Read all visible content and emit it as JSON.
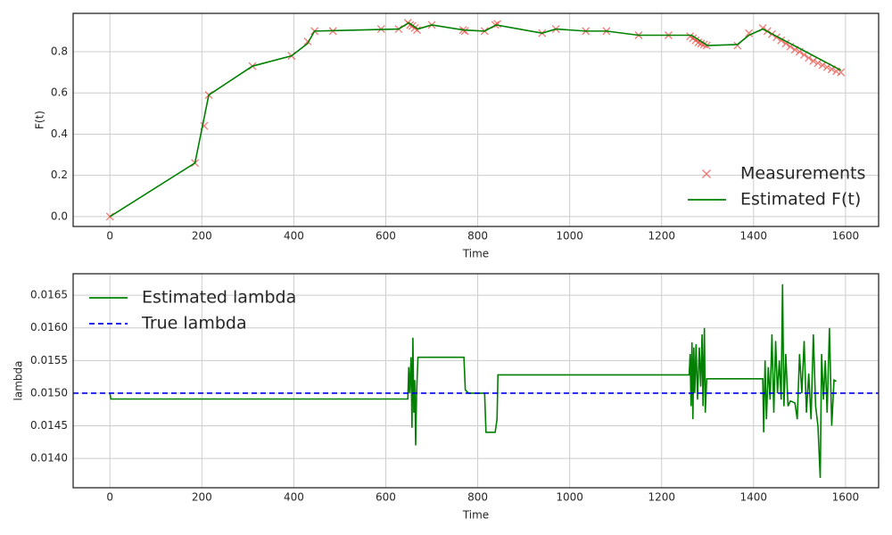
{
  "chart_data": [
    {
      "type": "line",
      "xlabel": "Time",
      "ylabel": "F(t)",
      "xlim": [
        -80,
        1672
      ],
      "xticks": [
        0,
        200,
        400,
        600,
        800,
        1000,
        1200,
        1400,
        1600
      ],
      "ylim": [
        -0.048,
        0.986
      ],
      "yticks": [
        {
          "value": 0,
          "label": "0.0"
        },
        0.2,
        0.4,
        0.6,
        0.8
      ],
      "grid": true,
      "legend": "lower right",
      "series": [
        {
          "name": "Measurements",
          "color": "#e8413a",
          "marker": "x",
          "x": [
            0,
            185,
            205,
            215,
            310,
            395,
            430,
            445,
            485,
            590,
            628,
            648,
            653,
            658,
            663,
            668,
            700,
            768,
            772,
            815,
            838,
            843,
            940,
            970,
            1035,
            1080,
            1150,
            1215,
            1262,
            1268,
            1274,
            1280,
            1286,
            1292,
            1298,
            1365,
            1390,
            1420,
            1430,
            1440,
            1450,
            1460,
            1470,
            1480,
            1490,
            1500,
            1510,
            1520,
            1530,
            1540,
            1550,
            1560,
            1570,
            1580,
            1590
          ],
          "values": [
            0,
            0.26,
            0.44,
            0.59,
            0.73,
            0.78,
            0.85,
            0.9,
            0.9,
            0.91,
            0.91,
            0.94,
            0.93,
            0.925,
            0.915,
            0.905,
            0.93,
            0.905,
            0.9,
            0.9,
            0.93,
            0.935,
            0.89,
            0.91,
            0.9,
            0.9,
            0.88,
            0.88,
            0.875,
            0.865,
            0.855,
            0.845,
            0.84,
            0.835,
            0.83,
            0.83,
            0.89,
            0.915,
            0.9,
            0.885,
            0.87,
            0.855,
            0.84,
            0.825,
            0.81,
            0.8,
            0.785,
            0.77,
            0.755,
            0.745,
            0.735,
            0.725,
            0.715,
            0.705,
            0.7
          ]
        },
        {
          "name": "Estimated F(t)",
          "color": "#008000",
          "x": [
            0,
            185,
            215,
            310,
            395,
            430,
            445,
            628,
            650,
            670,
            700,
            770,
            815,
            840,
            940,
            970,
            1035,
            1080,
            1150,
            1215,
            1265,
            1300,
            1365,
            1390,
            1420,
            1590
          ],
          "values": [
            0,
            0.26,
            0.59,
            0.73,
            0.78,
            0.84,
            0.9,
            0.91,
            0.94,
            0.91,
            0.93,
            0.905,
            0.9,
            0.93,
            0.89,
            0.91,
            0.9,
            0.9,
            0.88,
            0.88,
            0.88,
            0.83,
            0.835,
            0.88,
            0.91,
            0.71
          ]
        }
      ]
    },
    {
      "type": "line",
      "xlabel": "Time",
      "ylabel": "lambda",
      "xlim": [
        -80,
        1672
      ],
      "xticks": [
        0,
        200,
        400,
        600,
        800,
        1000,
        1200,
        1400,
        1600
      ],
      "ylim": [
        0.01355,
        0.01683
      ],
      "yticks": [
        {
          "value": 0.014,
          "label": "0.0140"
        },
        0.0145,
        {
          "value": 0.015,
          "label": "0.0150"
        },
        0.0155,
        {
          "value": 0.016,
          "label": "0.0160"
        },
        0.0165
      ],
      "grid": true,
      "legend": "upper left",
      "series": [
        {
          "name": "Estimated lambda",
          "color": "#008000",
          "x": [
            0,
            2,
            648,
            650,
            652,
            655,
            657,
            659,
            661,
            663,
            665,
            667,
            670,
            770,
            773,
            780,
            815,
            818,
            838,
            842,
            844,
            1260,
            1262,
            1264,
            1266,
            1268,
            1270,
            1272,
            1275,
            1278,
            1282,
            1285,
            1288,
            1290,
            1293,
            1295,
            1298,
            1420,
            1422,
            1425,
            1428,
            1432,
            1436,
            1440,
            1444,
            1448,
            1452,
            1456,
            1460,
            1463,
            1466,
            1470,
            1475,
            1480,
            1490,
            1495,
            1500,
            1505,
            1510,
            1515,
            1520,
            1525,
            1530,
            1535,
            1540,
            1545,
            1548,
            1552,
            1556,
            1560,
            1565,
            1570,
            1575,
            1580
          ],
          "values": [
            0.015,
            0.01491,
            0.01491,
            0.0154,
            0.015,
            0.01555,
            0.01447,
            0.01585,
            0.0147,
            0.0152,
            0.0142,
            0.015,
            0.01555,
            0.01555,
            0.01505,
            0.015,
            0.015,
            0.0144,
            0.0144,
            0.0146,
            0.01528,
            0.01528,
            0.0156,
            0.0148,
            0.01578,
            0.0146,
            0.0157,
            0.015,
            0.01575,
            0.0149,
            0.0157,
            0.0151,
            0.0159,
            0.0148,
            0.016,
            0.0147,
            0.01522,
            0.01522,
            0.0144,
            0.0155,
            0.0146,
            0.0154,
            0.0149,
            0.0159,
            0.0147,
            0.0158,
            0.015,
            0.0155,
            0.0149,
            0.01667,
            0.0148,
            0.0156,
            0.0148,
            0.01488,
            0.01485,
            0.0146,
            0.0156,
            0.015,
            0.0158,
            0.0147,
            0.0153,
            0.0146,
            0.0159,
            0.0148,
            0.0145,
            0.0137,
            0.0156,
            0.0149,
            0.0155,
            0.0147,
            0.016,
            0.0145,
            0.0152,
            0.01518
          ]
        },
        {
          "name": "True lambda",
          "color": "#0000ee",
          "linestyle": "dashed",
          "x": [
            -80,
            1672
          ],
          "values": [
            0.015,
            0.015
          ]
        }
      ]
    }
  ]
}
